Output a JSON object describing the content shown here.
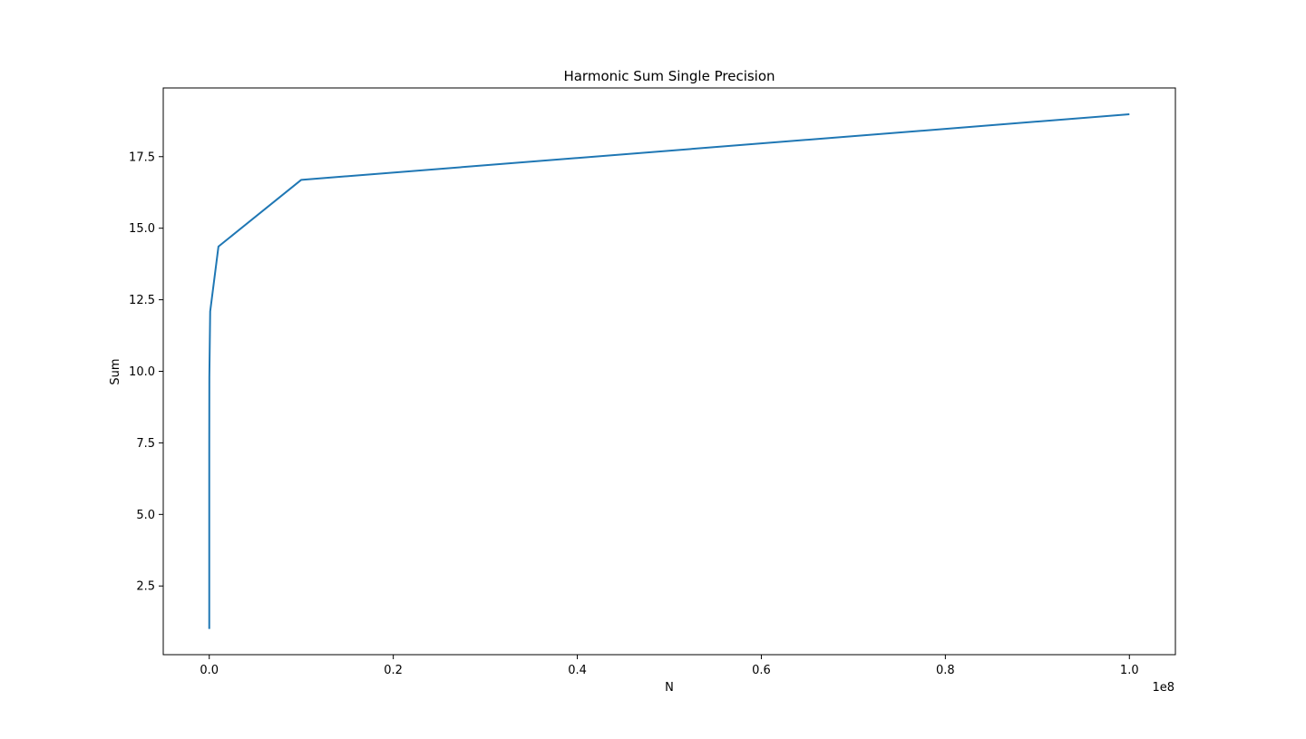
{
  "chart_data": {
    "type": "line",
    "title": "Harmonic Sum Single Precision",
    "xlabel": "N",
    "ylabel": "Sum",
    "x_offset_label": "1e8",
    "x_scale": 100000000,
    "xlim": [
      -5000000,
      105000000
    ],
    "ylim": [
      0.1,
      19.9
    ],
    "grid": false,
    "legend": "none",
    "x_ticks": [
      0,
      20000000,
      40000000,
      60000000,
      80000000,
      100000000
    ],
    "x_tick_labels": [
      "0.0",
      "0.2",
      "0.4",
      "0.6",
      "0.8",
      "1.0"
    ],
    "y_ticks": [
      2.5,
      5.0,
      7.5,
      10.0,
      12.5,
      15.0,
      17.5
    ],
    "y_tick_labels": [
      "2.5",
      "5.0",
      "7.5",
      "10.0",
      "12.5",
      "15.0",
      "17.5"
    ],
    "series": [
      {
        "color": "#1f77b4",
        "x": [
          1,
          10,
          100,
          1000,
          10000,
          100000,
          1000000,
          10000000,
          100000000
        ],
        "y": [
          1.0,
          2.93,
          5.19,
          7.49,
          9.79,
          12.09,
          14.36,
          16.69,
          18.98
        ]
      }
    ]
  }
}
